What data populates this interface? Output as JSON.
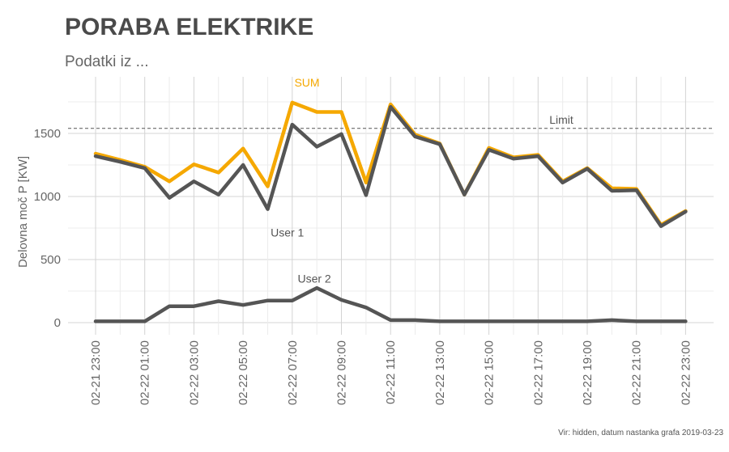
{
  "chart_data": {
    "type": "line",
    "title": "PORABA ELEKTRIKE",
    "subtitle": "Podatki iz ...",
    "ylabel": "Delovna moč P [KW]",
    "xlabel": "",
    "caption": "Vir: hidden, datum nastanka grafa  2019-03-23",
    "ylim": [
      -60,
      1960
    ],
    "yticks": [
      0,
      500,
      1000,
      1500
    ],
    "x_tick_labels": [
      "02-21 23:00",
      "02-22 01:00",
      "02-22 03:00",
      "02-22 05:00",
      "02-22 07:00",
      "02-22 09:00",
      "02-22 11:00",
      "02-22 13:00",
      "02-22 15:00",
      "02-22 17:00",
      "02-22 19:00",
      "02-22 21:00",
      "02-22 23:00"
    ],
    "grid": true,
    "limit": {
      "value": 1540,
      "label": "Limit"
    },
    "series": [
      {
        "name": "SUM",
        "color": "#F5A800",
        "values": [
          1340,
          1290,
          1235,
          1120,
          1255,
          1190,
          1380,
          1080,
          1745,
          1670,
          1670,
          1110,
          1730,
          1490,
          1420,
          1015,
          1385,
          1310,
          1330,
          1120,
          1225,
          1065,
          1060,
          775,
          885
        ]
      },
      {
        "name": "User 1",
        "color": "#555555",
        "values": [
          1320,
          1275,
          1225,
          990,
          1120,
          1015,
          1250,
          900,
          1570,
          1395,
          1495,
          1010,
          1710,
          1475,
          1415,
          1015,
          1370,
          1300,
          1320,
          1110,
          1220,
          1045,
          1050,
          765,
          880
        ]
      },
      {
        "name": "User 2",
        "color": "#555555",
        "values": [
          10,
          10,
          10,
          130,
          130,
          170,
          140,
          175,
          175,
          275,
          180,
          120,
          20,
          20,
          10,
          10,
          10,
          10,
          10,
          10,
          10,
          20,
          10,
          10,
          10
        ]
      }
    ],
    "annotations": [
      {
        "text": "SUM",
        "series": "SUM"
      },
      {
        "text": "User 1",
        "series": "User 1"
      },
      {
        "text": "User 2",
        "series": "User 2"
      }
    ]
  }
}
